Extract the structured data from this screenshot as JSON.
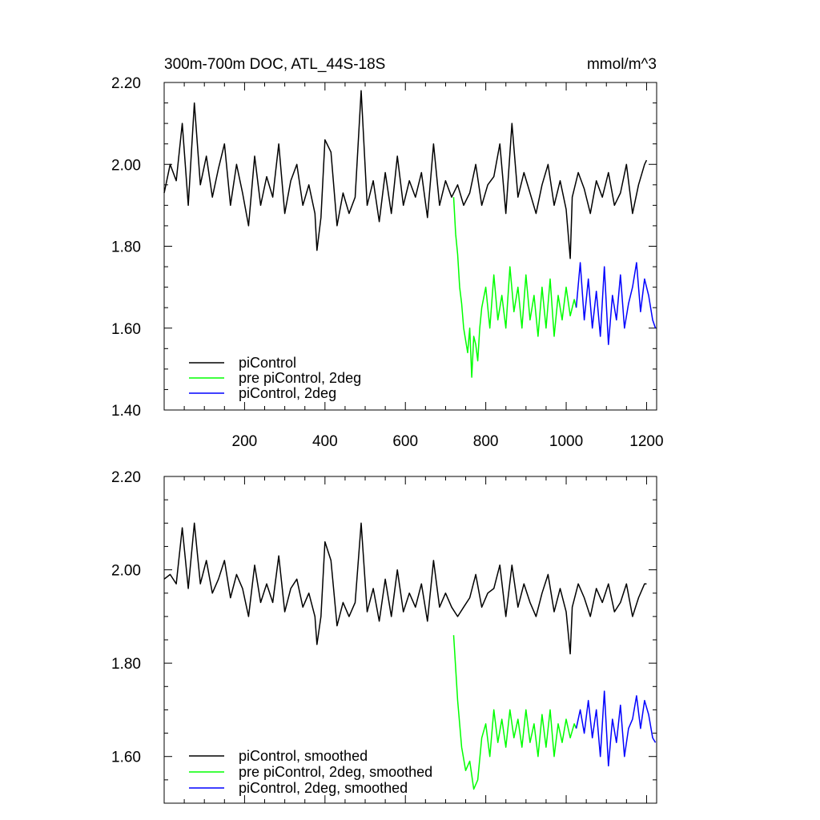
{
  "chart_data": [
    {
      "type": "line",
      "title": "300m-700m DOC, ATL_44S-18S",
      "units": "mmol/m^3",
      "xlim": [
        0,
        1225
      ],
      "ylim": [
        1.4,
        2.2
      ],
      "xticks": [
        200,
        400,
        600,
        800,
        1000,
        1200
      ],
      "xtick_labels": [
        "200",
        "400",
        "600",
        "800",
        "1000",
        "1200"
      ],
      "yticks": [
        1.4,
        1.6,
        1.8,
        2.0,
        2.2
      ],
      "ytick_labels": [
        "1.40",
        "1.60",
        "1.80",
        "2.00",
        "2.20"
      ],
      "legend_position": "bottom-left",
      "series": [
        {
          "name": "piControl",
          "color": "#000000",
          "x": [
            0,
            15,
            30,
            45,
            60,
            75,
            90,
            105,
            120,
            135,
            150,
            165,
            180,
            195,
            210,
            225,
            240,
            255,
            270,
            285,
            300,
            315,
            330,
            345,
            360,
            375,
            380,
            390,
            400,
            415,
            430,
            445,
            460,
            475,
            490,
            505,
            520,
            535,
            550,
            565,
            580,
            595,
            610,
            625,
            640,
            655,
            670,
            685,
            700,
            715,
            730,
            745,
            760,
            775,
            790,
            805,
            820,
            835,
            850,
            865,
            880,
            895,
            910,
            925,
            940,
            955,
            970,
            985,
            1000,
            1010,
            1015,
            1030,
            1045,
            1060,
            1075,
            1090,
            1105,
            1120,
            1135,
            1150,
            1165,
            1180,
            1195,
            1200
          ],
          "y": [
            1.93,
            2.0,
            1.96,
            2.1,
            1.9,
            2.15,
            1.95,
            2.02,
            1.92,
            1.99,
            2.05,
            1.9,
            2.0,
            1.93,
            1.85,
            2.02,
            1.9,
            1.97,
            1.92,
            2.05,
            1.88,
            1.96,
            2.0,
            1.9,
            1.95,
            1.88,
            1.79,
            1.87,
            2.06,
            2.03,
            1.85,
            1.93,
            1.88,
            1.92,
            2.18,
            1.9,
            1.96,
            1.86,
            1.98,
            1.88,
            2.02,
            1.9,
            1.96,
            1.92,
            1.98,
            1.87,
            2.05,
            1.9,
            1.96,
            1.92,
            1.95,
            1.9,
            1.93,
            2.0,
            1.9,
            1.95,
            1.97,
            2.05,
            1.88,
            2.1,
            1.92,
            1.98,
            1.93,
            1.88,
            1.95,
            2.0,
            1.9,
            1.96,
            1.89,
            1.77,
            1.92,
            1.98,
            1.94,
            1.88,
            1.96,
            1.92,
            1.98,
            1.9,
            1.93,
            2.0,
            1.88,
            1.95,
            2.0,
            2.01
          ]
        },
        {
          "name": "pre piControl, 2deg",
          "color": "#00ff00",
          "x": [
            720,
            725,
            730,
            735,
            740,
            745,
            750,
            755,
            760,
            765,
            770,
            775,
            780,
            785,
            790,
            800,
            810,
            820,
            830,
            840,
            850,
            860,
            870,
            880,
            890,
            900,
            910,
            920,
            930,
            940,
            950,
            960,
            970,
            980,
            990,
            1000,
            1010,
            1020,
            1025
          ],
          "y": [
            1.92,
            1.83,
            1.78,
            1.7,
            1.66,
            1.6,
            1.57,
            1.54,
            1.6,
            1.48,
            1.58,
            1.56,
            1.52,
            1.6,
            1.65,
            1.7,
            1.6,
            1.73,
            1.62,
            1.68,
            1.6,
            1.75,
            1.64,
            1.7,
            1.6,
            1.73,
            1.62,
            1.68,
            1.58,
            1.7,
            1.6,
            1.72,
            1.58,
            1.68,
            1.62,
            1.7,
            1.63,
            1.67,
            1.65
          ]
        },
        {
          "name": "piControl, 2deg",
          "color": "#0000ff",
          "x": [
            1025,
            1035,
            1045,
            1055,
            1065,
            1075,
            1085,
            1095,
            1105,
            1115,
            1125,
            1135,
            1145,
            1155,
            1165,
            1175,
            1185,
            1195,
            1205,
            1215,
            1222
          ],
          "y": [
            1.65,
            1.76,
            1.62,
            1.72,
            1.6,
            1.69,
            1.58,
            1.75,
            1.56,
            1.68,
            1.62,
            1.73,
            1.6,
            1.66,
            1.7,
            1.76,
            1.64,
            1.72,
            1.68,
            1.62,
            1.6
          ]
        }
      ]
    },
    {
      "type": "line",
      "xlim": [
        0,
        1225
      ],
      "ylim": [
        1.5,
        2.2
      ],
      "xticks": [
        200,
        400,
        600,
        800,
        1000,
        1200
      ],
      "yticks": [
        1.6,
        1.8,
        2.0,
        2.2
      ],
      "ytick_labels": [
        "1.60",
        "1.80",
        "2.00",
        "2.20"
      ],
      "legend_position": "bottom-left",
      "series": [
        {
          "name": "piControl, smoothed",
          "color": "#000000",
          "x": [
            0,
            15,
            30,
            45,
            60,
            75,
            90,
            105,
            120,
            135,
            150,
            165,
            180,
            195,
            210,
            225,
            240,
            255,
            270,
            285,
            300,
            315,
            330,
            345,
            360,
            375,
            380,
            390,
            400,
            415,
            430,
            445,
            460,
            475,
            490,
            505,
            520,
            535,
            550,
            565,
            580,
            595,
            610,
            625,
            640,
            655,
            670,
            685,
            700,
            715,
            730,
            745,
            760,
            775,
            790,
            805,
            820,
            835,
            850,
            865,
            880,
            895,
            910,
            925,
            940,
            955,
            970,
            985,
            1000,
            1010,
            1015,
            1030,
            1045,
            1060,
            1075,
            1090,
            1105,
            1120,
            1135,
            1150,
            1165,
            1180,
            1195,
            1200
          ],
          "y": [
            1.98,
            1.99,
            1.97,
            2.09,
            1.96,
            2.1,
            1.97,
            2.02,
            1.95,
            1.98,
            2.02,
            1.94,
            1.99,
            1.96,
            1.9,
            2.01,
            1.93,
            1.97,
            1.93,
            2.03,
            1.91,
            1.96,
            1.98,
            1.92,
            1.95,
            1.9,
            1.84,
            1.9,
            2.06,
            2.02,
            1.88,
            1.93,
            1.9,
            1.93,
            2.1,
            1.91,
            1.96,
            1.89,
            1.98,
            1.9,
            2.0,
            1.91,
            1.95,
            1.92,
            1.97,
            1.89,
            2.02,
            1.92,
            1.95,
            1.92,
            1.9,
            1.92,
            1.94,
            1.99,
            1.92,
            1.95,
            1.96,
            2.01,
            1.9,
            2.01,
            1.92,
            1.97,
            1.93,
            1.9,
            1.95,
            1.99,
            1.91,
            1.96,
            1.91,
            1.82,
            1.92,
            1.97,
            1.94,
            1.9,
            1.96,
            1.93,
            1.97,
            1.91,
            1.93,
            1.97,
            1.9,
            1.94,
            1.97,
            1.97
          ]
        },
        {
          "name": "pre piControl, 2deg, smoothed",
          "color": "#00ff00",
          "x": [
            720,
            730,
            740,
            750,
            760,
            770,
            780,
            790,
            800,
            810,
            820,
            830,
            840,
            850,
            860,
            870,
            880,
            890,
            900,
            910,
            920,
            930,
            940,
            950,
            960,
            970,
            980,
            990,
            1000,
            1010,
            1020,
            1025
          ],
          "y": [
            1.86,
            1.72,
            1.62,
            1.57,
            1.59,
            1.53,
            1.55,
            1.64,
            1.67,
            1.6,
            1.7,
            1.63,
            1.68,
            1.62,
            1.7,
            1.64,
            1.68,
            1.62,
            1.7,
            1.63,
            1.67,
            1.6,
            1.69,
            1.62,
            1.7,
            1.6,
            1.67,
            1.63,
            1.68,
            1.64,
            1.67,
            1.66
          ]
        },
        {
          "name": "piControl, 2deg, smoothed",
          "color": "#0000ff",
          "x": [
            1025,
            1035,
            1045,
            1055,
            1065,
            1075,
            1085,
            1095,
            1105,
            1115,
            1125,
            1135,
            1145,
            1155,
            1165,
            1175,
            1185,
            1195,
            1205,
            1215,
            1222
          ],
          "y": [
            1.66,
            1.7,
            1.65,
            1.72,
            1.64,
            1.7,
            1.6,
            1.74,
            1.58,
            1.68,
            1.63,
            1.71,
            1.6,
            1.66,
            1.68,
            1.73,
            1.66,
            1.72,
            1.69,
            1.64,
            1.63
          ]
        }
      ]
    }
  ]
}
